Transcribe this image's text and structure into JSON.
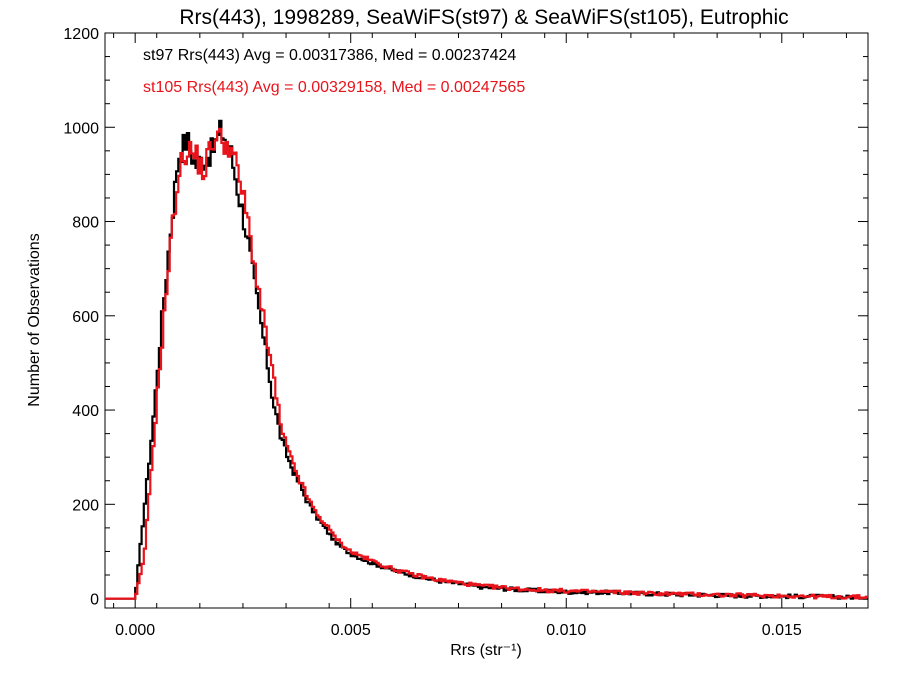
{
  "chart_data": {
    "type": "line",
    "title": "Rrs(443), 1998289, SeaWiFS(st97) & SeaWiFS(st105), Eutrophic",
    "xlabel": "Rrs (str⁻¹)",
    "ylabel": "Number of Observations",
    "xlim": [
      -0.0007,
      0.017
    ],
    "ylim": [
      -20,
      1200
    ],
    "x_ticks": [
      "0.000",
      "0.005",
      "0.010",
      "0.015"
    ],
    "y_ticks": [
      "0",
      "200",
      "400",
      "600",
      "800",
      "1000",
      "1200"
    ],
    "grid": false,
    "annotations": [
      {
        "text": "st97 Rrs(443) Avg = 0.00317386, Med = 0.00237424",
        "color": "#000000"
      },
      {
        "text": "st105 Rrs(443) Avg = 0.00329158, Med = 0.00247565",
        "color": "#e8141c"
      }
    ],
    "x": [
      -0.0007,
      -0.0002,
      0.0,
      0.0002,
      0.0004,
      0.0006,
      0.0008,
      0.001,
      0.0012,
      0.0014,
      0.0016,
      0.0018,
      0.002,
      0.0022,
      0.0024,
      0.0026,
      0.0028,
      0.003,
      0.0032,
      0.0034,
      0.0036,
      0.0038,
      0.004,
      0.0042,
      0.0044,
      0.0046,
      0.0048,
      0.005,
      0.0055,
      0.006,
      0.0065,
      0.007,
      0.0075,
      0.008,
      0.009,
      0.01,
      0.011,
      0.012,
      0.013,
      0.014,
      0.015,
      0.016,
      0.017
    ],
    "series": [
      {
        "name": "st97",
        "color": "#000000",
        "values": [
          0,
          0,
          0,
          180,
          360,
          570,
          760,
          940,
          975,
          920,
          935,
          950,
          995,
          955,
          860,
          770,
          650,
          540,
          420,
          335,
          285,
          245,
          205,
          175,
          150,
          125,
          108,
          95,
          75,
          60,
          48,
          38,
          32,
          25,
          18,
          14,
          13,
          10,
          8,
          6,
          5,
          4,
          2
        ]
      },
      {
        "name": "st105",
        "color": "#e8141c",
        "values": [
          0,
          0,
          0,
          80,
          300,
          520,
          730,
          900,
          955,
          940,
          905,
          975,
          975,
          960,
          900,
          810,
          690,
          580,
          475,
          355,
          300,
          255,
          215,
          180,
          160,
          135,
          115,
          100,
          80,
          62,
          50,
          40,
          34,
          27,
          20,
          16,
          14,
          11,
          9,
          7,
          6,
          4,
          3
        ]
      }
    ]
  }
}
